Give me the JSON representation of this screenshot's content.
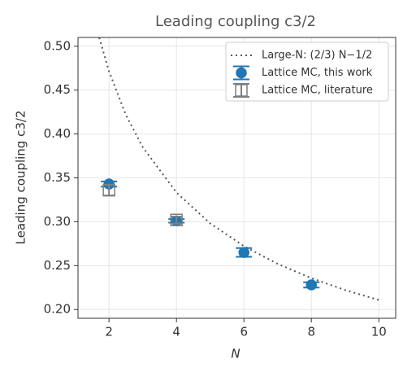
{
  "chart_data": {
    "type": "line-errorbar",
    "title": "Leading coupling c3/2",
    "xlabel": "N",
    "ylabel": "Leading coupling c3/2",
    "xlim": [
      1.08,
      10.5
    ],
    "ylim": [
      0.19,
      0.51
    ],
    "xticks": [
      2,
      4,
      6,
      8,
      10
    ],
    "yticks": [
      {
        "value": 0.2,
        "label": "0.20"
      },
      0.25,
      {
        "value": 0.3,
        "label": "0.30"
      },
      0.35,
      {
        "value": 0.4,
        "label": "0.40"
      },
      0.45,
      {
        "value": 0.5,
        "label": "0.50"
      }
    ],
    "grid": true,
    "legend": "upper right",
    "series": [
      {
        "name": "Large-N: (2/3) N−1/2",
        "style": "dotted-line",
        "color": "#555555",
        "x": [
          1.71,
          2,
          2.5,
          3,
          4,
          5,
          6,
          7,
          8,
          9,
          10
        ],
        "values": [
          0.5098,
          0.4714,
          0.4216,
          0.3849,
          0.3333,
          0.2981,
          0.2722,
          0.252,
          0.2357,
          0.2222,
          0.2108
        ]
      },
      {
        "name": "Lattice MC, this work",
        "style": "errorbar",
        "marker": "circle",
        "filled": true,
        "color": "#1f77b4",
        "x": [
          2,
          4,
          6,
          8
        ],
        "values": [
          0.343,
          0.301,
          0.265,
          0.228
        ],
        "errors": [
          0.003,
          0.002,
          0.005,
          0.003
        ]
      },
      {
        "name": "Lattice MC, literature",
        "style": "errorbar",
        "marker": "square",
        "filled": false,
        "color": "#7f7f7f",
        "x": [
          2,
          4
        ],
        "values": [
          0.336,
          0.302
        ],
        "errors": [
          0.006,
          0.004
        ]
      }
    ]
  }
}
